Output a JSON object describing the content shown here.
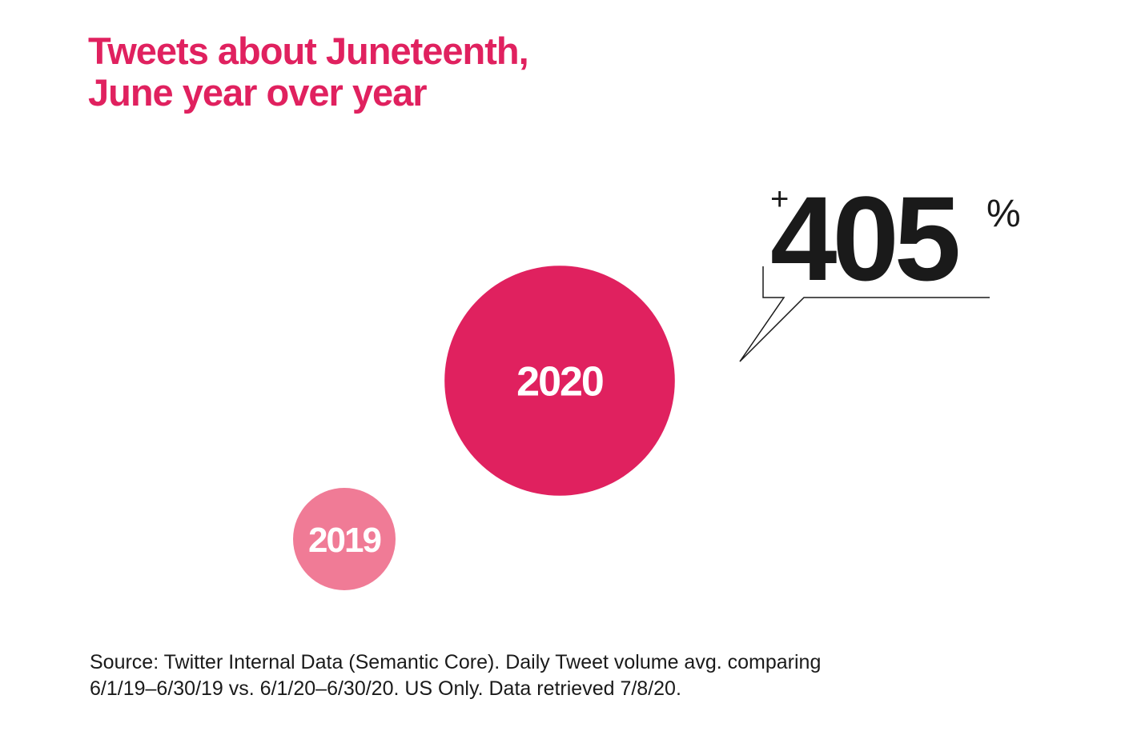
{
  "title": {
    "line1": "Tweets about Juneteenth,",
    "line2": "June year over year"
  },
  "chart_data": {
    "type": "bubble",
    "title": "Tweets about Juneteenth, June year over year",
    "series": [
      {
        "name": "2019",
        "relative_value": 1.0,
        "color": "#f07b96"
      },
      {
        "name": "2020",
        "relative_value": 5.05,
        "color": "#e0215f"
      }
    ],
    "annotation": {
      "prefix": "+",
      "value": "405",
      "suffix": "%"
    }
  },
  "source": {
    "line1": "Source: Twitter Internal Data (Semantic Core). Daily Tweet volume avg. comparing",
    "line2": "6/1/19–6/30/19 vs. 6/1/20–6/30/20. US Only. Data retrieved 7/8/20."
  },
  "colors": {
    "accent": "#e0215f",
    "accent_light": "#f07b96",
    "text": "#1a1a1a"
  }
}
